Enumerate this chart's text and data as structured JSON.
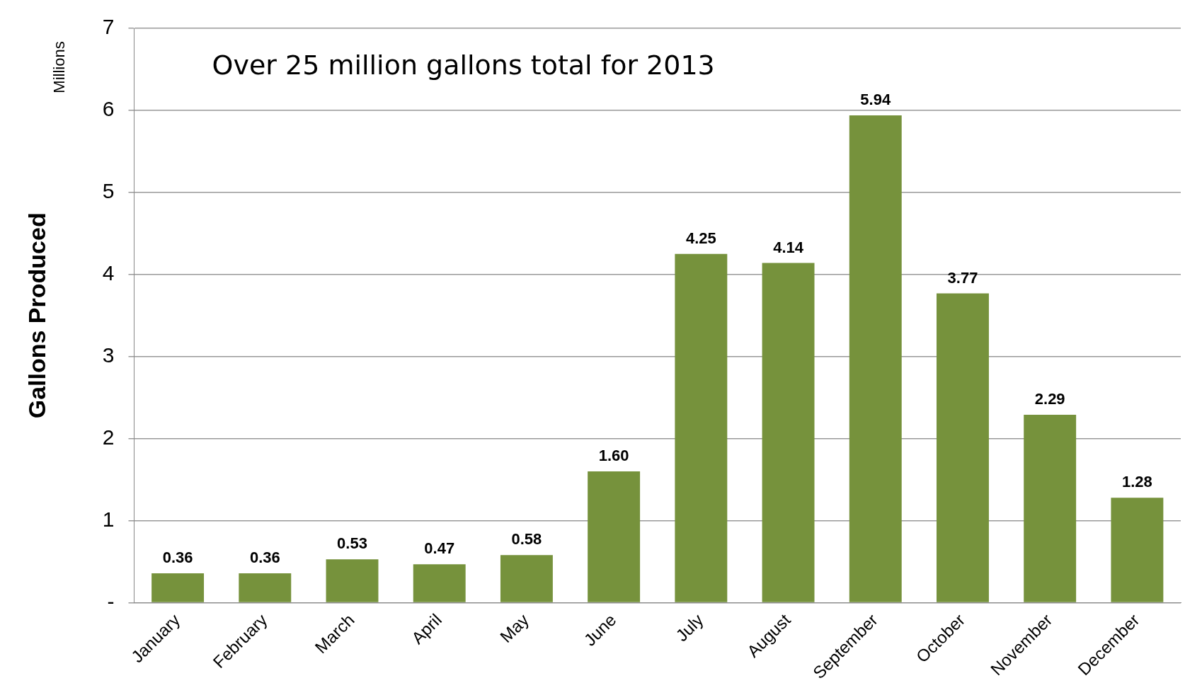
{
  "chart_data": {
    "type": "bar",
    "ylabel": "Gallons Produced",
    "categories": [
      "January",
      "February",
      "March",
      "April",
      "May",
      "June",
      "July",
      "August",
      "September",
      "October",
      "November",
      "December"
    ],
    "values": [
      0.36,
      0.36,
      0.53,
      0.47,
      0.58,
      1.6,
      4.25,
      4.14,
      5.94,
      3.77,
      2.29,
      1.28
    ],
    "value_labels": [
      "0.36",
      "0.36",
      "0.53",
      "0.47",
      "0.58",
      "1.60",
      "4.25",
      "4.14",
      "5.94",
      "3.77",
      "2.29",
      "1.28"
    ],
    "color": "#76923c",
    "ylim": [
      0,
      7
    ],
    "yticks": [
      {
        "value": 0,
        "label": "-"
      },
      1,
      2,
      3,
      4,
      5,
      6,
      7
    ],
    "grid": "y",
    "annotations": [
      "Over 25 million gallons total for 2013",
      "Millions"
    ]
  }
}
